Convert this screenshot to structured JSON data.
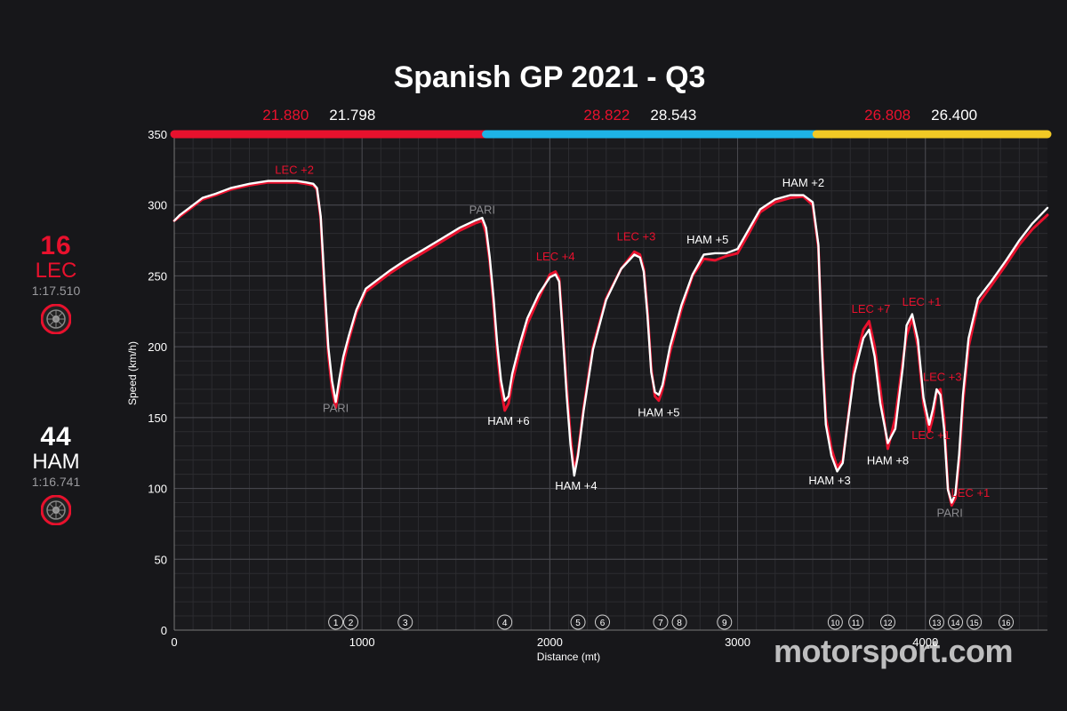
{
  "drivers": [
    {
      "number": "16",
      "code": "LEC",
      "lap_time": "1:17.510",
      "color": "#e8112d",
      "tyre_icon": "soft-tyre-icon"
    },
    {
      "number": "44",
      "code": "HAM",
      "lap_time": "1:16.741",
      "color": "#ffffff",
      "tyre_icon": "soft-tyre-icon"
    }
  ],
  "watermark": "motorsport.com",
  "chart_data": {
    "type": "line",
    "title": "Spanish GP 2021 - Q3",
    "xlabel": "Distance (mt)",
    "ylabel": "Speed (km/h)",
    "xlim": [
      0,
      4650
    ],
    "ylim": [
      0,
      350
    ],
    "x_ticks": [
      0,
      1000,
      2000,
      3000,
      4000
    ],
    "y_ticks": [
      0,
      50,
      100,
      150,
      200,
      250,
      300,
      350
    ],
    "grid": true,
    "sectors": [
      {
        "start": 0,
        "end": 1660,
        "color": "#e8112d",
        "times": [
          "21.880",
          "21.798"
        ]
      },
      {
        "start": 1660,
        "end": 3420,
        "color": "#1eb4e6",
        "times": [
          "28.822",
          "28.543"
        ]
      },
      {
        "start": 3420,
        "end": 4650,
        "color": "#f2c925",
        "times": [
          "26.808",
          "26.400"
        ]
      }
    ],
    "series": [
      {
        "name": "LEC",
        "color": "#e8112d",
        "x": [
          0,
          30,
          80,
          150,
          220,
          300,
          400,
          500,
          600,
          650,
          700,
          740,
          760,
          780,
          800,
          820,
          840,
          860,
          880,
          900,
          930,
          970,
          1020,
          1080,
          1150,
          1230,
          1320,
          1420,
          1520,
          1600,
          1640,
          1660,
          1680,
          1700,
          1720,
          1740,
          1760,
          1780,
          1800,
          1840,
          1880,
          1940,
          2000,
          2030,
          2050,
          2070,
          2090,
          2110,
          2130,
          2150,
          2180,
          2230,
          2300,
          2380,
          2450,
          2480,
          2500,
          2520,
          2540,
          2560,
          2580,
          2600,
          2640,
          2700,
          2760,
          2820,
          2880,
          2940,
          3000,
          3060,
          3120,
          3200,
          3280,
          3350,
          3400,
          3430,
          3450,
          3470,
          3500,
          3530,
          3560,
          3580,
          3620,
          3670,
          3700,
          3730,
          3760,
          3800,
          3840,
          3880,
          3900,
          3930,
          3960,
          3990,
          4020,
          4040,
          4060,
          4080,
          4100,
          4120,
          4140,
          4160,
          4180,
          4200,
          4230,
          4280,
          4350,
          4430,
          4500,
          4570,
          4650
        ],
        "y": [
          289,
          292,
          297,
          304,
          307,
          311,
          314,
          316,
          316,
          316,
          315,
          314,
          311,
          290,
          240,
          195,
          170,
          157,
          173,
          188,
          205,
          224,
          239,
          245,
          252,
          259,
          266,
          274,
          282,
          287,
          289,
          280,
          260,
          230,
          196,
          170,
          155,
          160,
          175,
          197,
          216,
          234,
          251,
          253,
          248,
          210,
          170,
          137,
          112,
          125,
          157,
          200,
          234,
          255,
          267,
          265,
          255,
          225,
          185,
          165,
          162,
          170,
          196,
          226,
          250,
          262,
          261,
          264,
          266,
          280,
          295,
          302,
          305,
          306,
          300,
          270,
          200,
          150,
          128,
          115,
          120,
          140,
          185,
          212,
          218,
          200,
          170,
          128,
          150,
          190,
          208,
          220,
          200,
          160,
          140,
          150,
          168,
          170,
          150,
          100,
          88,
          93,
          120,
          160,
          200,
          230,
          243,
          258,
          272,
          283,
          293
        ]
      },
      {
        "name": "HAM",
        "color": "#ffffff",
        "x": [
          0,
          30,
          80,
          150,
          220,
          300,
          400,
          500,
          600,
          650,
          700,
          740,
          760,
          780,
          800,
          820,
          840,
          860,
          880,
          900,
          930,
          970,
          1020,
          1080,
          1150,
          1230,
          1320,
          1420,
          1520,
          1600,
          1640,
          1660,
          1680,
          1700,
          1720,
          1740,
          1760,
          1780,
          1800,
          1840,
          1880,
          1940,
          2000,
          2030,
          2050,
          2070,
          2090,
          2110,
          2130,
          2150,
          2180,
          2230,
          2300,
          2380,
          2450,
          2480,
          2500,
          2520,
          2540,
          2560,
          2580,
          2600,
          2640,
          2700,
          2760,
          2820,
          2880,
          2940,
          3000,
          3060,
          3120,
          3200,
          3280,
          3350,
          3400,
          3430,
          3450,
          3470,
          3500,
          3530,
          3560,
          3580,
          3620,
          3670,
          3700,
          3730,
          3760,
          3800,
          3840,
          3880,
          3900,
          3930,
          3960,
          3990,
          4020,
          4040,
          4060,
          4080,
          4100,
          4120,
          4140,
          4160,
          4180,
          4200,
          4230,
          4280,
          4350,
          4430,
          4500,
          4570,
          4650
        ],
        "y": [
          289,
          293,
          298,
          305,
          308,
          312,
          315,
          317,
          317,
          317,
          316,
          315,
          312,
          292,
          245,
          200,
          176,
          161,
          178,
          193,
          208,
          226,
          241,
          247,
          254,
          261,
          268,
          276,
          284,
          289,
          291,
          284,
          263,
          235,
          202,
          176,
          162,
          165,
          181,
          202,
          220,
          237,
          249,
          251,
          246,
          207,
          165,
          131,
          109,
          123,
          155,
          198,
          233,
          255,
          265,
          263,
          253,
          222,
          182,
          168,
          166,
          173,
          200,
          229,
          251,
          265,
          266,
          266,
          269,
          283,
          297,
          304,
          307,
          307,
          302,
          272,
          195,
          145,
          123,
          112,
          118,
          140,
          180,
          206,
          212,
          193,
          160,
          132,
          142,
          186,
          215,
          223,
          205,
          164,
          145,
          156,
          170,
          166,
          142,
          99,
          90,
          96,
          124,
          166,
          206,
          234,
          246,
          261,
          275,
          287,
          298
        ]
      }
    ],
    "annotations": [
      {
        "text": "LEC +2",
        "x": 640,
        "y": 322,
        "color": "#e8112d",
        "anchor": "middle"
      },
      {
        "text": "PARI",
        "x": 1640,
        "y": 294,
        "color": "#8a8a8e",
        "anchor": "middle"
      },
      {
        "text": "PARI",
        "x": 860,
        "y": 154,
        "color": "#8a8a8e",
        "anchor": "middle"
      },
      {
        "text": "HAM +6",
        "x": 1780,
        "y": 145,
        "color": "#ffffff",
        "anchor": "middle"
      },
      {
        "text": "LEC +4",
        "x": 2030,
        "y": 261,
        "color": "#e8112d",
        "anchor": "middle"
      },
      {
        "text": "HAM +4",
        "x": 2140,
        "y": 99,
        "color": "#ffffff",
        "anchor": "middle"
      },
      {
        "text": "LEC +3",
        "x": 2460,
        "y": 275,
        "color": "#e8112d",
        "anchor": "middle"
      },
      {
        "text": "HAM +5",
        "x": 2580,
        "y": 151,
        "color": "#ffffff",
        "anchor": "middle"
      },
      {
        "text": "HAM +5",
        "x": 2840,
        "y": 273,
        "color": "#ffffff",
        "anchor": "middle"
      },
      {
        "text": "HAM +2",
        "x": 3350,
        "y": 313,
        "color": "#ffffff",
        "anchor": "middle"
      },
      {
        "text": "HAM +3",
        "x": 3490,
        "y": 103,
        "color": "#ffffff",
        "anchor": "middle"
      },
      {
        "text": "LEC +7",
        "x": 3710,
        "y": 224,
        "color": "#e8112d",
        "anchor": "middle"
      },
      {
        "text": "HAM +8",
        "x": 3800,
        "y": 117,
        "color": "#ffffff",
        "anchor": "middle"
      },
      {
        "text": "LEC +1",
        "x": 3980,
        "y": 229,
        "color": "#e8112d",
        "anchor": "middle"
      },
      {
        "text": "LEC +3",
        "x": 4090,
        "y": 176,
        "color": "#e8112d",
        "anchor": "middle"
      },
      {
        "text": "LEC +1",
        "x": 4030,
        "y": 135,
        "color": "#e8112d",
        "anchor": "middle"
      },
      {
        "text": "LEC +1",
        "x": 4240,
        "y": 94,
        "color": "#e8112d",
        "anchor": "middle"
      },
      {
        "text": "PARI",
        "x": 4130,
        "y": 80,
        "color": "#8a8a8e",
        "anchor": "middle"
      }
    ],
    "corners": [
      {
        "label": "1",
        "x": 860
      },
      {
        "label": "2",
        "x": 940
      },
      {
        "label": "3",
        "x": 1230
      },
      {
        "label": "4",
        "x": 1760
      },
      {
        "label": "5",
        "x": 2150
      },
      {
        "label": "6",
        "x": 2280
      },
      {
        "label": "7",
        "x": 2590
      },
      {
        "label": "8",
        "x": 2690
      },
      {
        "label": "9",
        "x": 2930
      },
      {
        "label": "10",
        "x": 3520
      },
      {
        "label": "11",
        "x": 3630
      },
      {
        "label": "12",
        "x": 3800
      },
      {
        "label": "13",
        "x": 4060
      },
      {
        "label": "14",
        "x": 4160
      },
      {
        "label": "15",
        "x": 4260
      },
      {
        "label": "16",
        "x": 4430
      }
    ]
  }
}
